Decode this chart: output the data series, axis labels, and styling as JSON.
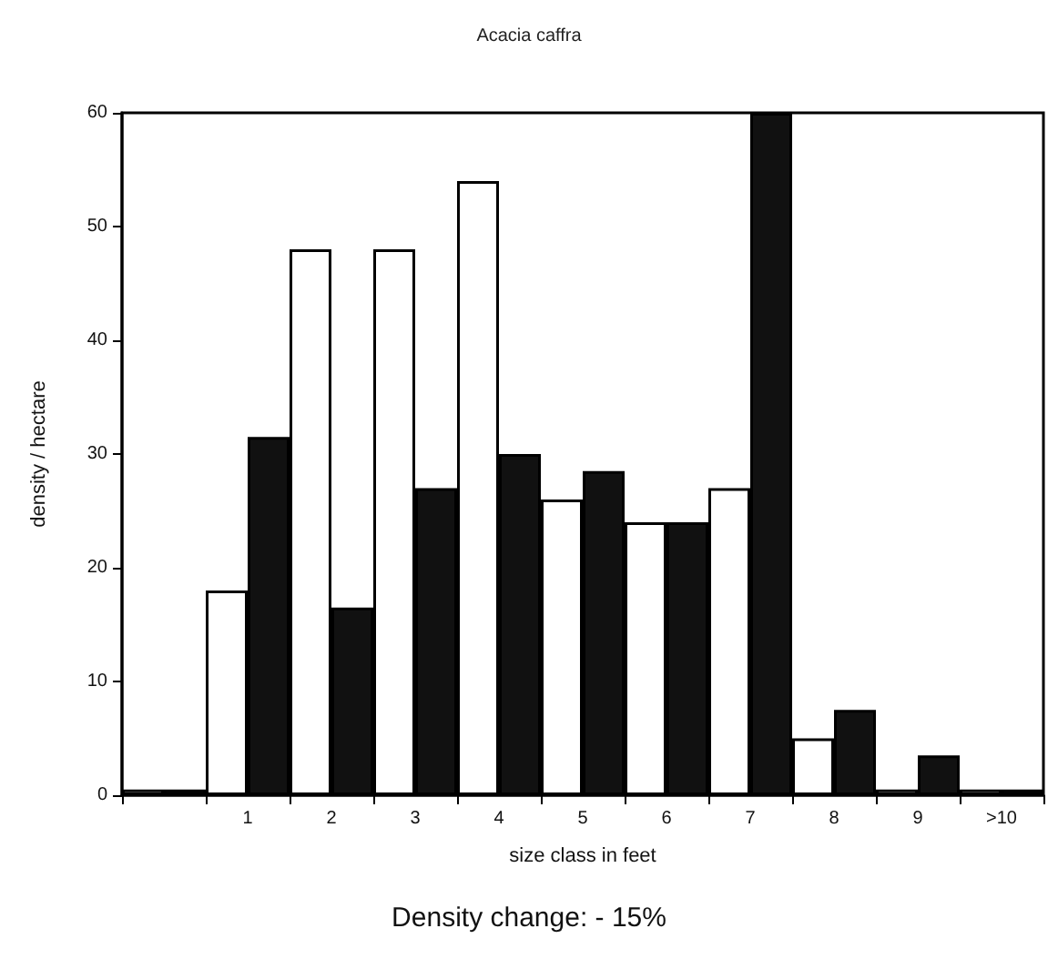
{
  "chart_data": {
    "type": "bar",
    "title": "Acacia caffra",
    "xlabel": "size class in feet",
    "ylabel": "density / hectare",
    "annotations": [
      "Density change: - 15%"
    ],
    "categories": [
      null,
      "1",
      "2",
      "3",
      "4",
      "5",
      "6",
      "7",
      "8",
      "9",
      ">10"
    ],
    "series": [
      {
        "color": "#ffffff",
        "values": [
          0.5,
          18,
          48,
          48,
          54,
          26,
          24,
          27,
          5,
          0.5,
          0.5
        ]
      },
      {
        "color": "#111111",
        "values": [
          0.5,
          31.5,
          16.5,
          27,
          30,
          28.5,
          24,
          60,
          7.5,
          3.5,
          0.5
        ]
      }
    ],
    "ylim": [
      0,
      60
    ],
    "yticks": [
      0,
      10,
      20,
      30,
      40,
      50,
      60
    ],
    "grid": false
  }
}
